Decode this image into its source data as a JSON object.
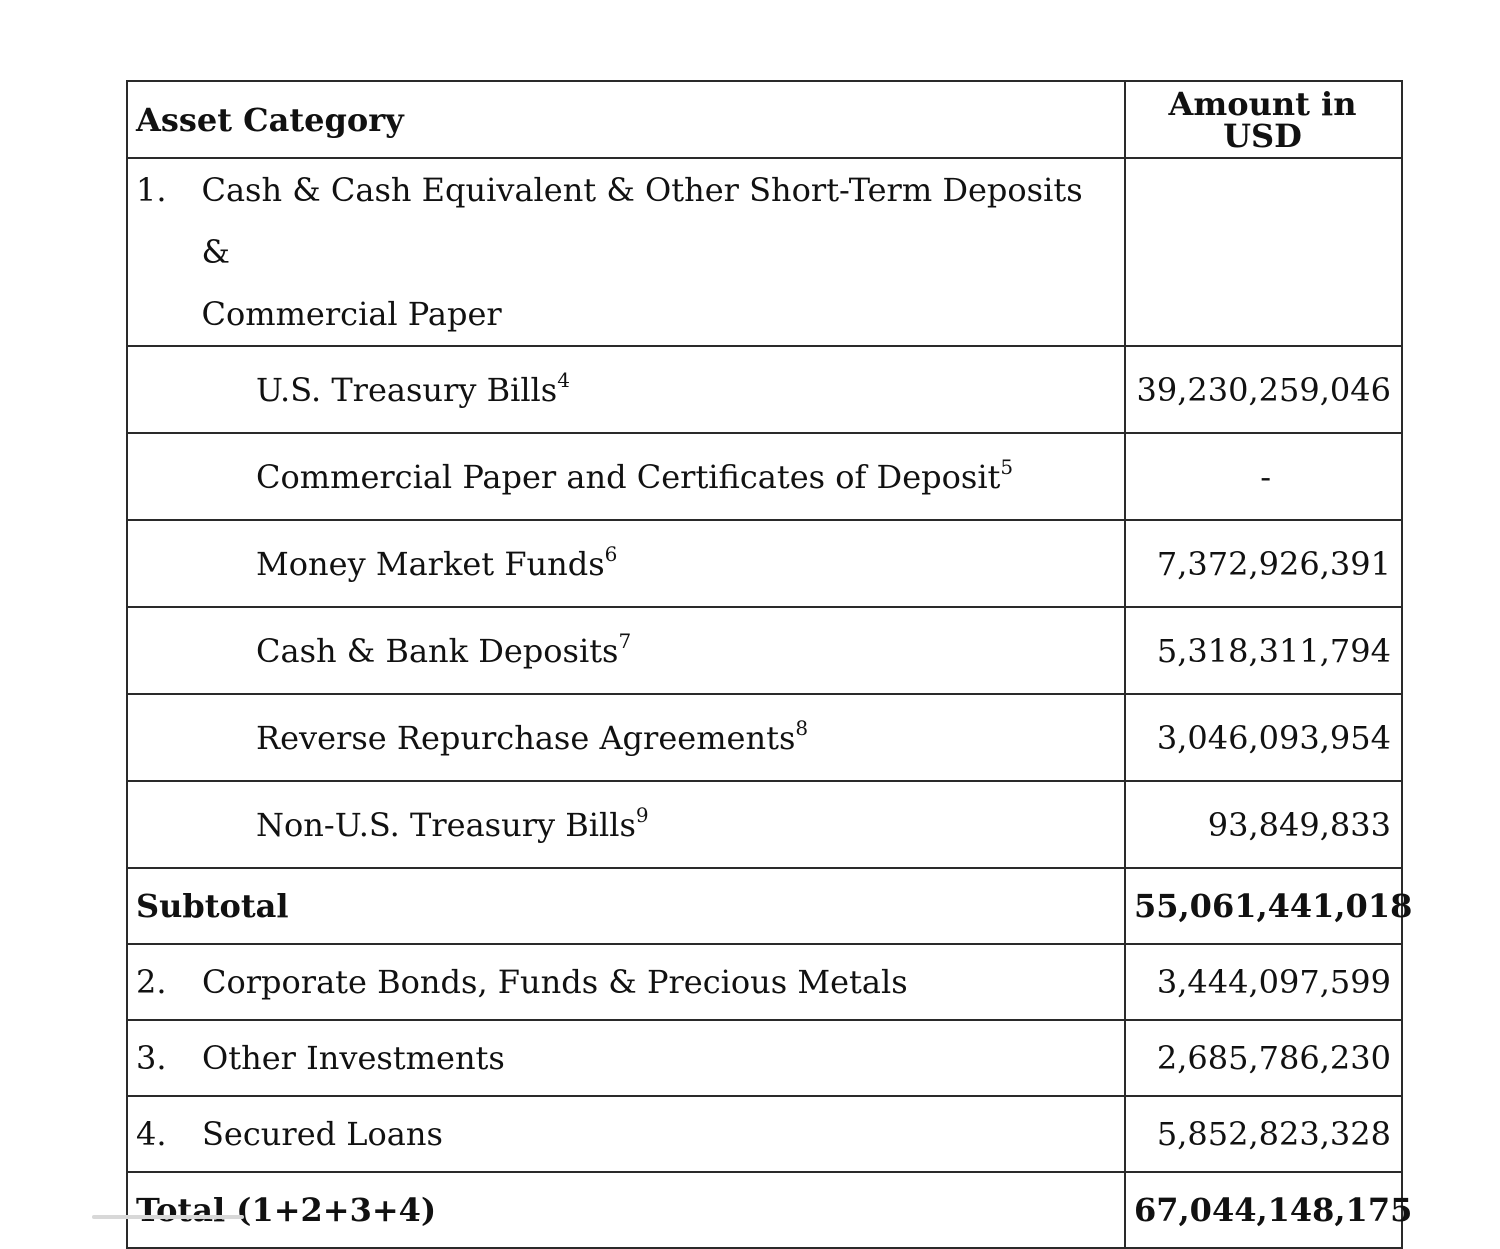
{
  "table": {
    "header": {
      "category": "Asset Category",
      "amount": "Amount in USD"
    },
    "category1": {
      "number": "1.",
      "line1": "Cash & Cash Equivalent & Other Short-Term Deposits &",
      "line2": "Commercial Paper",
      "amount": ""
    },
    "sub_items": [
      {
        "label": "U.S. Treasury Bills",
        "note": "4",
        "amount": "39,230,259,046"
      },
      {
        "label": "Commercial Paper and Certificates of Deposit",
        "note": "5",
        "amount": "-"
      },
      {
        "label": "Money Market Funds",
        "note": "6",
        "amount": "7,372,926,391"
      },
      {
        "label": "Cash & Bank Deposits",
        "note": "7",
        "amount": "5,318,311,794"
      },
      {
        "label": "Reverse Repurchase Agreements",
        "note": "8",
        "amount": "3,046,093,954"
      },
      {
        "label": "Non-U.S. Treasury Bills",
        "note": "9",
        "amount": "93,849,833"
      }
    ],
    "subtotal": {
      "label": "Subtotal",
      "amount": "55,061,441,018"
    },
    "categories": [
      {
        "number": "2.",
        "label": "Corporate Bonds, Funds & Precious Metals",
        "amount": "3,444,097,599"
      },
      {
        "number": "3.",
        "label": "Other Investments",
        "amount": "2,685,786,230"
      },
      {
        "number": "4.",
        "label": "Secured Loans",
        "amount": "5,852,823,328"
      }
    ],
    "total": {
      "label": "Total (1+2+3+4)",
      "amount": "67,044,148,175"
    }
  }
}
